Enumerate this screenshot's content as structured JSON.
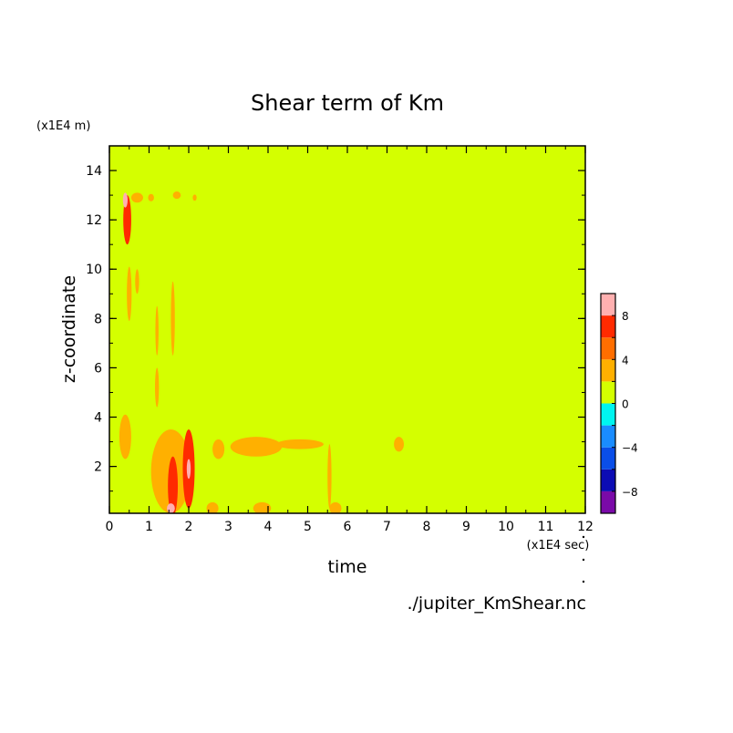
{
  "chart_data": {
    "type": "heatmap",
    "title": "Shear term of Km",
    "xlabel": "time",
    "ylabel": "z-coordinate",
    "x_unit": "(x1E4 sec)",
    "y_unit": "(x1E4 m)",
    "xlim": [
      0,
      12
    ],
    "ylim": [
      0.1,
      15
    ],
    "x_ticks": [
      "0",
      "1",
      "2",
      "3",
      "4",
      "5",
      "6",
      "7",
      "8",
      "9",
      "10",
      "11",
      "12"
    ],
    "y_ticks": [
      "2",
      "4",
      "6",
      "8",
      "10",
      "12",
      "14"
    ],
    "background_level": "0 to 2",
    "colorbar": {
      "ticks": [
        "8",
        "4",
        "0",
        "−4",
        "−8"
      ],
      "levels": [
        {
          "range": [
            -10,
            -8
          ],
          "color": "#7a0aa8"
        },
        {
          "range": [
            -8,
            -6
          ],
          "color": "#0c0cb4"
        },
        {
          "range": [
            -6,
            -4
          ],
          "color": "#0a4ee8"
        },
        {
          "range": [
            -4,
            -2
          ],
          "color": "#1a8cff"
        },
        {
          "range": [
            -2,
            0
          ],
          "color": "#00f5f0"
        },
        {
          "range": [
            0,
            2
          ],
          "color": "#d4ff00"
        },
        {
          "range": [
            2,
            4
          ],
          "color": "#ffb000"
        },
        {
          "range": [
            4,
            6
          ],
          "color": "#ff6e00"
        },
        {
          "range": [
            6,
            8
          ],
          "color": "#ff2a00"
        },
        {
          "range": [
            8,
            10
          ],
          "color": "#ffb0b0"
        }
      ]
    },
    "features": [
      {
        "x": 0.4,
        "y": 12.8,
        "level": 8,
        "w": 0.12,
        "h": 0.6
      },
      {
        "x": 0.45,
        "y": 12.0,
        "level": 6,
        "w": 0.2,
        "h": 2.0
      },
      {
        "x": 0.5,
        "y": 9.0,
        "level": 2,
        "w": 0.12,
        "h": 2.2
      },
      {
        "x": 0.7,
        "y": 12.9,
        "level": 2,
        "w": 0.3,
        "h": 0.4
      },
      {
        "x": 1.05,
        "y": 12.9,
        "level": 2,
        "w": 0.15,
        "h": 0.3
      },
      {
        "x": 1.7,
        "y": 13.0,
        "level": 2,
        "w": 0.2,
        "h": 0.3
      },
      {
        "x": 2.15,
        "y": 12.9,
        "level": 2,
        "w": 0.1,
        "h": 0.25
      },
      {
        "x": 0.7,
        "y": 9.5,
        "level": 2,
        "w": 0.1,
        "h": 1.0
      },
      {
        "x": 1.6,
        "y": 8.0,
        "level": 2,
        "w": 0.1,
        "h": 3.0
      },
      {
        "x": 1.2,
        "y": 7.5,
        "level": 2,
        "w": 0.08,
        "h": 2.0
      },
      {
        "x": 1.2,
        "y": 5.2,
        "level": 2,
        "w": 0.1,
        "h": 1.6
      },
      {
        "x": 0.4,
        "y": 3.2,
        "level": 2,
        "w": 0.3,
        "h": 1.8
      },
      {
        "x": 1.55,
        "y": 1.8,
        "level": 2,
        "w": 1.0,
        "h": 3.4
      },
      {
        "x": 1.6,
        "y": 1.2,
        "level": 6,
        "w": 0.25,
        "h": 2.4
      },
      {
        "x": 2.0,
        "y": 1.9,
        "level": 6,
        "w": 0.3,
        "h": 3.2
      },
      {
        "x": 1.55,
        "y": 0.3,
        "level": 8,
        "w": 0.2,
        "h": 0.4
      },
      {
        "x": 2.0,
        "y": 1.9,
        "level": 8,
        "w": 0.1,
        "h": 0.8
      },
      {
        "x": 2.75,
        "y": 2.7,
        "level": 2,
        "w": 0.3,
        "h": 0.8
      },
      {
        "x": 2.6,
        "y": 0.3,
        "level": 2,
        "w": 0.3,
        "h": 0.5
      },
      {
        "x": 3.7,
        "y": 2.8,
        "level": 2,
        "w": 1.3,
        "h": 0.8
      },
      {
        "x": 3.85,
        "y": 0.3,
        "level": 2,
        "w": 0.45,
        "h": 0.5
      },
      {
        "x": 4.8,
        "y": 2.9,
        "level": 2,
        "w": 1.2,
        "h": 0.4
      },
      {
        "x": 5.55,
        "y": 1.6,
        "level": 2,
        "w": 0.1,
        "h": 2.6
      },
      {
        "x": 5.7,
        "y": 0.3,
        "level": 2,
        "w": 0.3,
        "h": 0.5
      },
      {
        "x": 7.3,
        "y": 2.9,
        "level": 2,
        "w": 0.25,
        "h": 0.6
      }
    ]
  },
  "source_label": "./jupiter_KmShear.nc"
}
